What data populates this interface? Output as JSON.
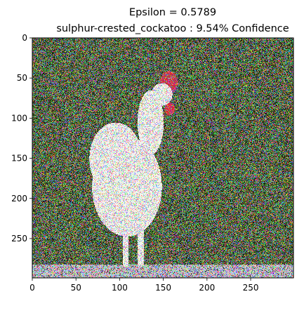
{
  "chart_data": {
    "type": "image",
    "title_line1": "Epsilon = 0.5789",
    "title_line2": "sulphur-crested_cockatoo : 9.54% Confidence",
    "xlabel": "",
    "ylabel": "",
    "xlim": [
      0,
      299
    ],
    "ylim": [
      299,
      0
    ],
    "xticks": [
      0,
      50,
      100,
      150,
      200,
      250
    ],
    "yticks": [
      0,
      50,
      100,
      150,
      200,
      250
    ],
    "image": {
      "description": "adversarially perturbed photo of a white rooster with red comb against dark green foliage, heavy multicolor noise",
      "palette": {
        "background": "#2f4a22",
        "foliage_light": "#5a7a3a",
        "rooster": "#f2f2ee",
        "comb": "#d0283a",
        "ground": "#c8c8d8",
        "noise_colors": [
          "#ff2fd0",
          "#25e0ff",
          "#40ff3a",
          "#ff3a28",
          "#3a46ff",
          "#ffe640"
        ]
      }
    }
  }
}
